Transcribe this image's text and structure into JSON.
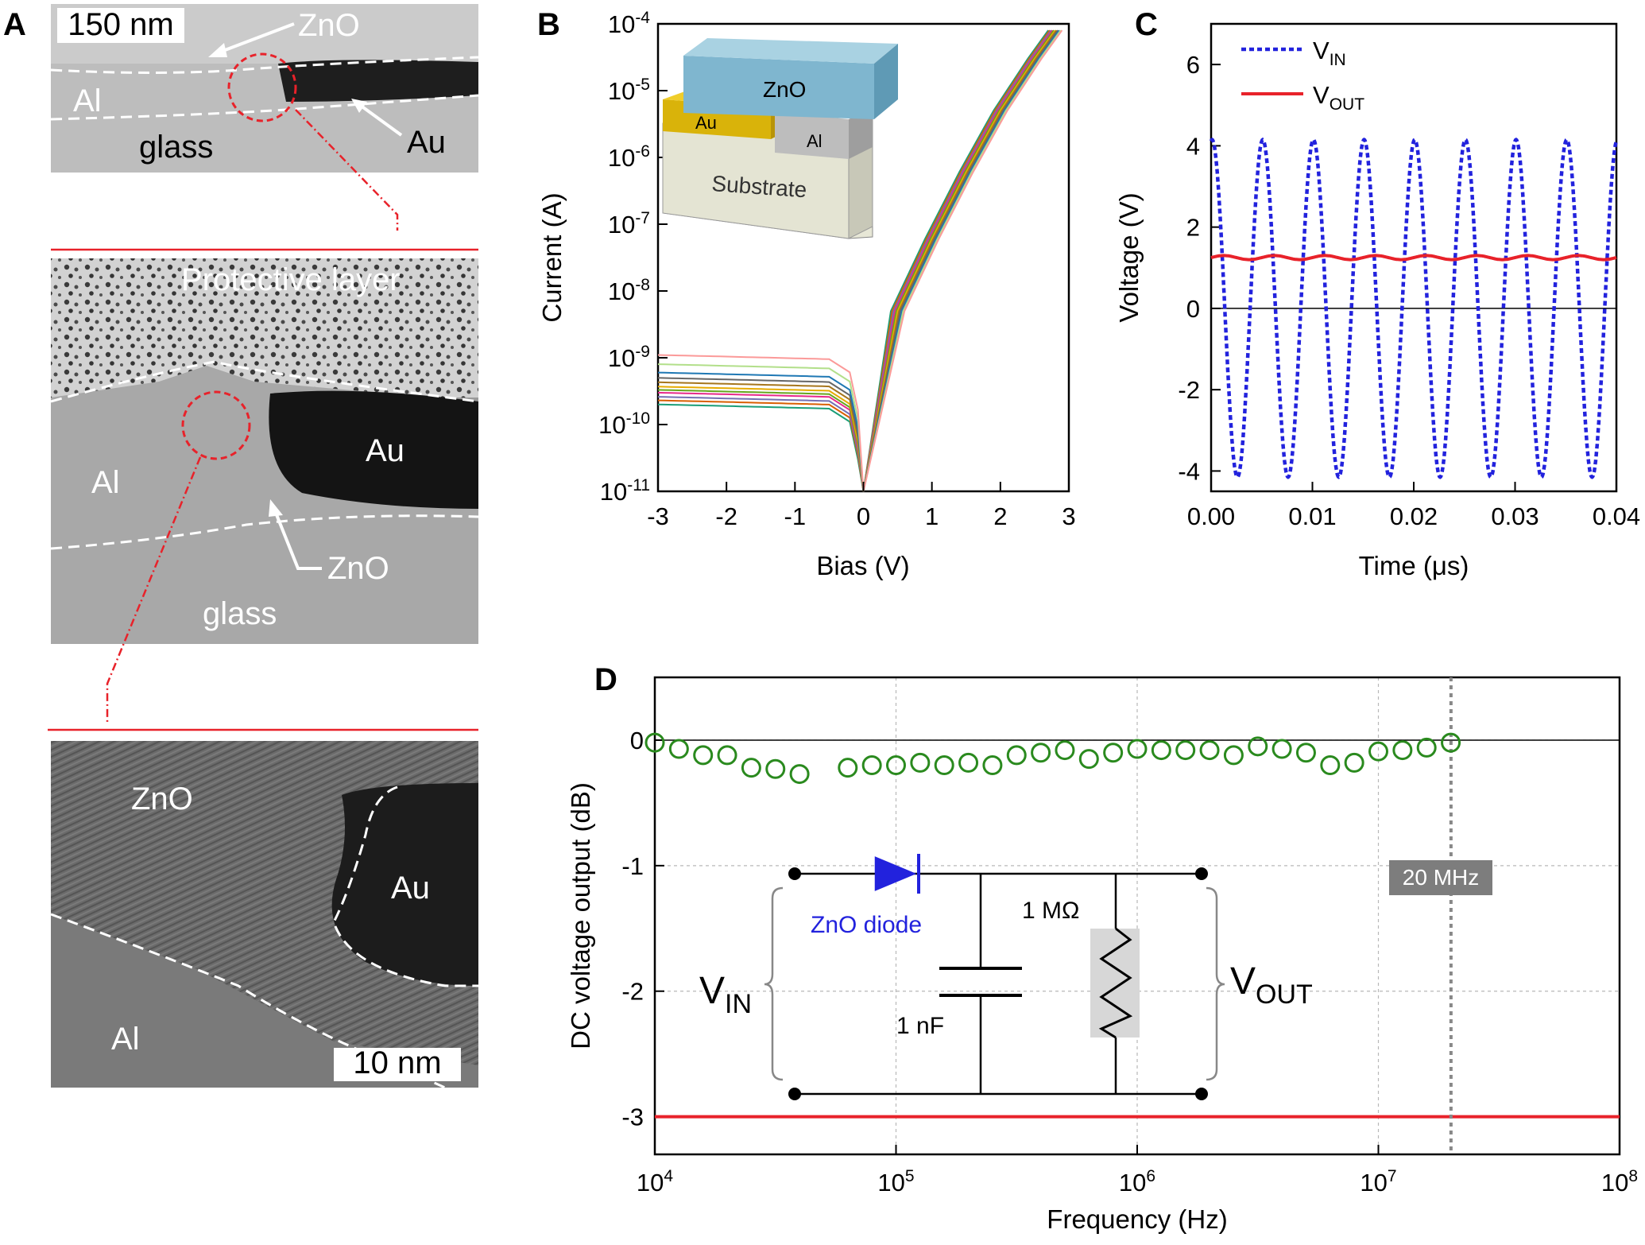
{
  "panels": {
    "a": {
      "letter": "A",
      "top": {
        "scale": "150 nm",
        "zno": "ZnO",
        "al": "Al",
        "glass": "glass",
        "au": "Au"
      },
      "middle": {
        "protective": "Protective layer",
        "al": "Al",
        "au": "Au",
        "zno": "ZnO",
        "glass": "glass"
      },
      "bottom": {
        "zno": "ZnO",
        "au": "Au",
        "al": "Al",
        "scale": "10 nm"
      }
    },
    "b": {
      "letter": "B",
      "inset": {
        "zno": "ZnO",
        "au": "Au",
        "al": "Al",
        "substrate": "Substrate"
      }
    },
    "c": {
      "letter": "C"
    },
    "d": {
      "letter": "D",
      "marker": "20 MHz",
      "circuit": {
        "diode": "ZnO diode",
        "cap": "1 nF",
        "res": "1 MΩ",
        "vin_main": "V",
        "vin_sub": "IN",
        "vout_main": "V",
        "vout_sub": "OUT"
      }
    }
  },
  "colors": {
    "red": "#e8222a",
    "blue": "#2222dd",
    "green": "#2a8a1e",
    "gray": "#888888",
    "zno_block": "#7fb6cf",
    "au_block": "#d9b30a",
    "al_block": "#bdbdbd"
  },
  "chart_data": [
    {
      "id": "b",
      "type": "line",
      "xlabel": "Bias (V)",
      "ylabel": "Current (A)",
      "xlim": [
        -3,
        3
      ],
      "ylim_log10": [
        -11,
        -4
      ],
      "xticks": [
        "-3",
        "-2",
        "-1",
        "0",
        "1",
        "2",
        "3"
      ],
      "yticks_exponent": [
        "-11",
        "-10",
        "-9",
        "-8",
        "-7",
        "-6",
        "-5",
        "-4"
      ],
      "ytick_base": "10",
      "reverse_current_A": [
        2e-10,
        2.3e-10,
        2.6e-10,
        3e-10,
        3.3e-10,
        3.7e-10,
        4.3e-10,
        5e-10,
        6e-10,
        8e-10,
        1.1e-09
      ],
      "forward_current_A": {
        "bias_V": [
          0,
          0.5,
          1,
          1.5,
          2,
          2.5,
          2.8
        ],
        "current_A": [
          1e-11,
          5e-09,
          6e-08,
          6e-07,
          5e-06,
          3e-05,
          8e-05
        ]
      },
      "series_colors": [
        "#1b9e77",
        "#d95f02",
        "#7570b3",
        "#e7298a",
        "#66a61e",
        "#e6ab02",
        "#a6761d",
        "#666666",
        "#1f78b4",
        "#b2df8a",
        "#fb9a99",
        "#6a3d9a"
      ]
    },
    {
      "id": "c",
      "type": "line",
      "xlabel": "Time (μs)",
      "ylabel": "Voltage (V)",
      "xlim": [
        0,
        0.04
      ],
      "ylim": [
        -4.5,
        7
      ],
      "xticks": [
        "0.00",
        "0.01",
        "0.02",
        "0.03",
        "0.04"
      ],
      "yticks": [
        "-4",
        "-2",
        "0",
        "2",
        "4",
        "6"
      ],
      "legend": [
        {
          "main": "V",
          "sub": "IN",
          "style": "dotted",
          "color": "#2222dd"
        },
        {
          "main": "V",
          "sub": "OUT",
          "style": "solid",
          "color": "#e8222a"
        }
      ],
      "series": [
        {
          "name": "VIN",
          "amplitude": 4.15,
          "period_us": 0.005,
          "first_peak_us": 0.0001
        },
        {
          "name": "VOUT",
          "level": 1.25,
          "ripple": 0.05
        }
      ]
    },
    {
      "id": "d",
      "type": "scatter",
      "xlabel": "Frequency (Hz)",
      "ylabel": "DC voltage output (dB)",
      "xlim_log10": [
        4,
        8
      ],
      "ylim": [
        -3.3,
        0.5
      ],
      "xticks_exponent": [
        "4",
        "5",
        "6",
        "7",
        "8"
      ],
      "xtick_base": "10",
      "yticks": [
        "-3",
        "-2",
        "-1",
        "0"
      ],
      "reference_line_dB": -3,
      "marker_frequency_Hz": 20000000,
      "log10_frequency": [
        4.0,
        4.1,
        4.2,
        4.3,
        4.4,
        4.5,
        4.6,
        4.8,
        4.9,
        5.0,
        5.1,
        5.2,
        5.3,
        5.4,
        5.5,
        5.6,
        5.7,
        5.8,
        5.9,
        6.0,
        6.1,
        6.2,
        6.3,
        6.4,
        6.5,
        6.6,
        6.7,
        6.8,
        6.9,
        7.0,
        7.1,
        7.2,
        7.3
      ],
      "dB": [
        -0.02,
        -0.07,
        -0.12,
        -0.12,
        -0.22,
        -0.23,
        -0.27,
        -0.22,
        -0.2,
        -0.2,
        -0.18,
        -0.2,
        -0.18,
        -0.2,
        -0.12,
        -0.1,
        -0.08,
        -0.15,
        -0.1,
        -0.07,
        -0.08,
        -0.08,
        -0.08,
        -0.12,
        -0.05,
        -0.07,
        -0.1,
        -0.2,
        -0.18,
        -0.09,
        -0.08,
        -0.06,
        -0.02
      ]
    }
  ]
}
